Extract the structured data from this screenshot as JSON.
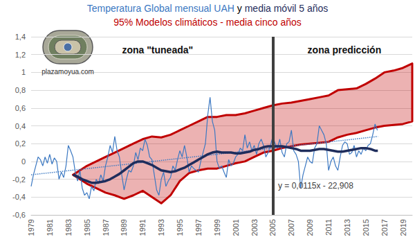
{
  "chart_data": {
    "type": "line",
    "title": "Temperatura Global mensual UAH y media móvil 5 años",
    "xlim": [
      1979,
      2020
    ],
    "xticks": [
      1979,
      1981,
      1983,
      1985,
      1987,
      1989,
      1991,
      1993,
      1995,
      1997,
      1999,
      2001,
      2003,
      2005,
      2007,
      2009,
      2011,
      2013,
      2015,
      2017,
      2019
    ],
    "ylim": [
      -0.6,
      1.4
    ],
    "yticks": [
      {
        "value": -0.6,
        "label": "-0,6"
      },
      {
        "value": -0.4,
        "label": "-0,4"
      },
      {
        "value": -0.2,
        "label": "-0,2"
      },
      0,
      {
        "value": 0.2,
        "label": "0,2"
      },
      {
        "value": 0.4,
        "label": "0,4"
      },
      {
        "value": 0.6,
        "label": "0,6"
      },
      {
        "value": 0.8,
        "label": "0,8"
      },
      1,
      {
        "value": 1.2,
        "label": "1,2"
      },
      {
        "value": 1.4,
        "label": "1,4"
      }
    ],
    "grid": true,
    "series": [
      {
        "name": "Temperatura Global mensual UAH",
        "type": "line",
        "color": "#3b78c2",
        "line_style": "solid",
        "x": [
          1979,
          1979.25,
          1979.5,
          1979.75,
          1980,
          1980.25,
          1980.5,
          1980.75,
          1981,
          1981.25,
          1981.5,
          1981.75,
          1982,
          1982.25,
          1982.5,
          1982.75,
          1983,
          1983.25,
          1983.5,
          1983.75,
          1984,
          1984.25,
          1984.5,
          1984.75,
          1985,
          1985.25,
          1985.5,
          1985.75,
          1986,
          1986.25,
          1986.5,
          1986.75,
          1987,
          1987.25,
          1987.5,
          1987.75,
          1988,
          1988.25,
          1988.5,
          1988.75,
          1989,
          1989.25,
          1989.5,
          1989.75,
          1990,
          1990.25,
          1990.5,
          1990.75,
          1991,
          1991.25,
          1991.5,
          1991.75,
          1992,
          1992.25,
          1992.5,
          1992.75,
          1993,
          1993.25,
          1993.5,
          1993.75,
          1994,
          1994.25,
          1994.5,
          1994.75,
          1995,
          1995.25,
          1995.5,
          1995.75,
          1996,
          1996.25,
          1996.5,
          1996.75,
          1997,
          1997.25,
          1997.5,
          1997.75,
          1998,
          1998.25,
          1998.5,
          1998.75,
          1999,
          1999.25,
          1999.5,
          1999.75,
          2000,
          2000.25,
          2000.5,
          2000.75,
          2001,
          2001.25,
          2001.5,
          2001.75,
          2002,
          2002.25,
          2002.5,
          2002.75,
          2003,
          2003.25,
          2003.5,
          2003.75,
          2004,
          2004.25,
          2004.5,
          2004.75,
          2005,
          2005.25,
          2005.5,
          2005.75,
          2006,
          2006.25,
          2006.5,
          2006.75,
          2007,
          2007.25,
          2007.5,
          2007.75,
          2008,
          2008.25,
          2008.5,
          2008.75,
          2009,
          2009.25,
          2009.5,
          2009.75,
          2010,
          2010.25,
          2010.5,
          2010.75,
          2011,
          2011.25,
          2011.5,
          2011.75,
          2012,
          2012.25,
          2012.5,
          2012.75,
          2013,
          2013.25,
          2013.5,
          2013.75,
          2014,
          2014.25,
          2014.5,
          2014.75,
          2015,
          2015.25,
          2015.5,
          2015.75,
          2016,
          2016.25
        ],
        "values": [
          -0.28,
          -0.15,
          -0.05,
          0.05,
          0.02,
          -0.05,
          0.05,
          -0.02,
          0.08,
          -0.03,
          0.04,
          0.0,
          -0.2,
          -0.12,
          -0.18,
          -0.05,
          0.18,
          0.12,
          0.05,
          -0.12,
          -0.22,
          -0.1,
          -0.3,
          -0.38,
          -0.35,
          -0.42,
          -0.28,
          -0.33,
          -0.2,
          -0.25,
          -0.15,
          -0.22,
          -0.05,
          0.05,
          0.18,
          0.1,
          0.28,
          0.12,
          0.05,
          -0.15,
          -0.32,
          -0.2,
          -0.1,
          -0.12,
          -0.05,
          0.1,
          0.02,
          0.15,
          0.12,
          0.25,
          0.18,
          0.05,
          0.02,
          -0.15,
          -0.32,
          -0.38,
          -0.2,
          -0.12,
          -0.28,
          -0.22,
          -0.18,
          -0.05,
          -0.1,
          0.02,
          0.12,
          0.05,
          0.18,
          0.05,
          -0.12,
          -0.05,
          -0.08,
          -0.1,
          -0.12,
          0.0,
          0.1,
          0.2,
          0.52,
          0.72,
          0.45,
          0.35,
          0.0,
          -0.08,
          -0.05,
          -0.12,
          -0.18,
          0.02,
          -0.05,
          -0.02,
          0.05,
          0.08,
          0.15,
          0.12,
          0.3,
          0.15,
          0.22,
          0.12,
          0.18,
          0.08,
          0.2,
          0.25,
          0.18,
          0.05,
          0.1,
          0.18,
          0.28,
          0.2,
          0.15,
          0.25,
          0.1,
          0.05,
          0.2,
          0.22,
          0.35,
          0.12,
          0.08,
          0.0,
          -0.3,
          -0.15,
          -0.05,
          0.05,
          0.0,
          -0.02,
          0.15,
          0.2,
          0.4,
          0.35,
          0.3,
          0.2,
          -0.1,
          0.0,
          0.05,
          -0.05,
          -0.1,
          0.05,
          0.18,
          0.22,
          0.2,
          0.08,
          0.1,
          0.18,
          0.05,
          0.12,
          0.08,
          0.15,
          0.12,
          0.18,
          0.2,
          0.3,
          0.42,
          0.35
        ]
      },
      {
        "name": "media móvil 5 años",
        "type": "line",
        "color": "#1f2d5c",
        "line_style": "solid",
        "x": [
          1983.5,
          1984,
          1984.5,
          1985,
          1985.5,
          1986,
          1986.5,
          1987,
          1987.5,
          1988,
          1988.5,
          1989,
          1989.5,
          1990,
          1990.5,
          1991,
          1991.5,
          1992,
          1992.5,
          1993,
          1993.5,
          1994,
          1994.5,
          1995,
          1995.5,
          1996,
          1996.5,
          1997,
          1997.5,
          1998,
          1998.5,
          1999,
          1999.5,
          2000,
          2000.5,
          2001,
          2001.5,
          2002,
          2002.5,
          2003,
          2003.5,
          2004,
          2004.5,
          2005,
          2005.5,
          2006,
          2006.5,
          2007,
          2007.5,
          2008,
          2008.5,
          2009,
          2009.5,
          2010,
          2010.5,
          2011,
          2011.5,
          2012,
          2012.5,
          2013,
          2013.5,
          2014,
          2014.5,
          2015,
          2015.5,
          2016,
          2016.3
        ],
        "values": [
          -0.15,
          -0.17,
          -0.2,
          -0.22,
          -0.24,
          -0.24,
          -0.23,
          -0.22,
          -0.2,
          -0.17,
          -0.14,
          -0.1,
          -0.06,
          -0.02,
          0,
          0,
          -0.02,
          -0.04,
          -0.07,
          -0.1,
          -0.11,
          -0.12,
          -0.11,
          -0.09,
          -0.07,
          -0.04,
          -0.01,
          0.02,
          0.05,
          0.08,
          0.1,
          0.11,
          0.1,
          0.1,
          0.1,
          0.09,
          0.09,
          0.1,
          0.11,
          0.13,
          0.14,
          0.16,
          0.17,
          0.17,
          0.17,
          0.17,
          0.16,
          0.15,
          0.14,
          0.12,
          0.12,
          0.12,
          0.13,
          0.14,
          0.14,
          0.13,
          0.12,
          0.11,
          0.11,
          0.12,
          0.13,
          0.14,
          0.15,
          0.15,
          0.14,
          0.12,
          0.12
        ]
      },
      {
        "name": "y = 0,0115x - 22,908",
        "type": "line",
        "color": "#3b78c2",
        "line_style": "dotted",
        "x": [
          1979,
          2016.3
        ],
        "values": [
          -0.15,
          0.28
        ]
      },
      {
        "name": "95% Modelos climáticos - media cinco años",
        "type": "band",
        "color": "#c00000",
        "x": [
          1983.5,
          1985,
          1986,
          1987,
          1988,
          1989,
          1990,
          1991,
          1992,
          1993,
          1994,
          1995,
          1996,
          1997,
          1998,
          1999,
          2000,
          2001,
          2002,
          2003,
          2004,
          2005,
          2006,
          2007,
          2008,
          2009,
          2010,
          2011,
          2012,
          2013,
          2014,
          2015,
          2016,
          2017,
          2018,
          2019,
          2020
        ],
        "lower": [
          -0.15,
          -0.25,
          -0.3,
          -0.35,
          -0.38,
          -0.42,
          -0.38,
          -0.33,
          -0.4,
          -0.47,
          -0.38,
          -0.22,
          -0.13,
          -0.1,
          -0.08,
          -0.08,
          -0.05,
          -0.02,
          0.0,
          0.05,
          0.1,
          0.12,
          0.15,
          0.17,
          0.19,
          0.2,
          0.21,
          0.22,
          0.27,
          0.3,
          0.32,
          0.35,
          0.38,
          0.4,
          0.41,
          0.42,
          0.45
        ],
        "upper": [
          -0.15,
          -0.05,
          0.0,
          0.05,
          0.1,
          0.15,
          0.2,
          0.25,
          0.28,
          0.27,
          0.3,
          0.35,
          0.4,
          0.45,
          0.5,
          0.5,
          0.52,
          0.52,
          0.54,
          0.57,
          0.6,
          0.63,
          0.65,
          0.66,
          0.68,
          0.7,
          0.72,
          0.74,
          0.8,
          0.81,
          0.82,
          0.87,
          0.93,
          1.0,
          1.02,
          1.05,
          1.1
        ]
      }
    ],
    "vline": {
      "x": 2005,
      "color": "#3f3f3f"
    },
    "annotations": [
      {
        "text": "zona \"tuneada\"",
        "x": 1992.6,
        "y": 1.25
      },
      {
        "text": "zona predicción",
        "x": 2012.7,
        "y": 1.25
      }
    ],
    "watermark": "plazamoyua.com"
  }
}
